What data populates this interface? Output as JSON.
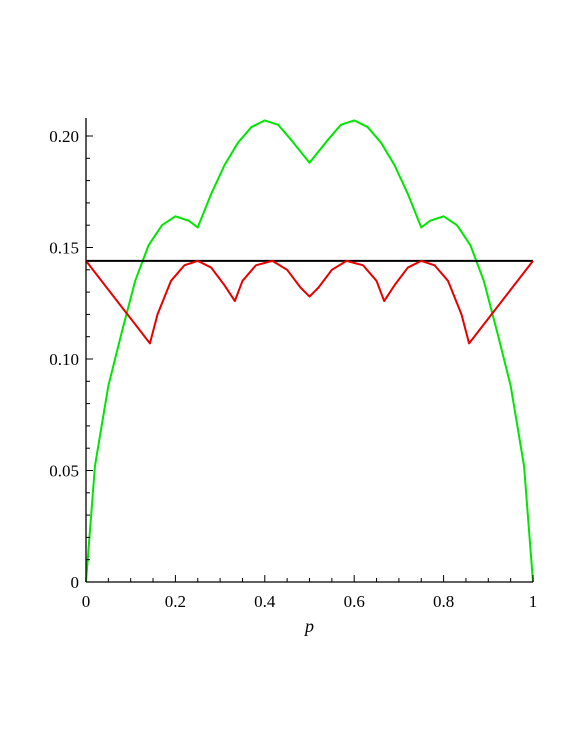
{
  "chart_data": {
    "type": "line",
    "title": "",
    "xlabel": "p",
    "ylabel": "",
    "xlim": [
      0,
      1
    ],
    "ylim": [
      0,
      0.21
    ],
    "xticks": [
      {
        "value": 0,
        "label": "0"
      },
      {
        "value": 0.2,
        "label": "0.2"
      },
      {
        "value": 0.4,
        "label": "0.4"
      },
      {
        "value": 0.6,
        "label": "0.6"
      },
      {
        "value": 0.8,
        "label": "0.8"
      },
      {
        "value": 1,
        "label": "1"
      }
    ],
    "yticks": [
      {
        "value": 0,
        "label": "0"
      },
      {
        "value": 0.05,
        "label": "0.05"
      },
      {
        "value": 0.1,
        "label": "0.10"
      },
      {
        "value": 0.15,
        "label": "0.15"
      },
      {
        "value": 0.2,
        "label": "0.20"
      }
    ],
    "grid": false,
    "legend": "none",
    "series": [
      {
        "color": "#00e600",
        "x": [
          0,
          0.02,
          0.05,
          0.08,
          0.11,
          0.14,
          0.17,
          0.2,
          0.23,
          0.25,
          0.28,
          0.31,
          0.34,
          0.37,
          0.4,
          0.43,
          0.46,
          0.48,
          0.5,
          0.52,
          0.54,
          0.57,
          0.6,
          0.63,
          0.66,
          0.69,
          0.72,
          0.75,
          0.77,
          0.8,
          0.83,
          0.86,
          0.89,
          0.92,
          0.95,
          0.98,
          1
        ],
        "y": [
          0,
          0.052,
          0.088,
          0.112,
          0.135,
          0.151,
          0.16,
          0.164,
          0.162,
          0.159,
          0.174,
          0.187,
          0.197,
          0.204,
          0.207,
          0.205,
          0.198,
          0.193,
          0.188,
          0.193,
          0.198,
          0.205,
          0.207,
          0.204,
          0.197,
          0.187,
          0.174,
          0.159,
          0.162,
          0.164,
          0.16,
          0.151,
          0.135,
          0.112,
          0.088,
          0.052,
          0
        ]
      },
      {
        "color": "#000000",
        "x": [
          0,
          1
        ],
        "y": [
          0.144,
          0.144
        ]
      },
      {
        "color": "#e60000",
        "x": [
          0,
          0.143,
          0.16,
          0.19,
          0.22,
          0.25,
          0.28,
          0.31,
          0.333,
          0.35,
          0.38,
          0.417,
          0.45,
          0.48,
          0.5,
          0.52,
          0.55,
          0.583,
          0.62,
          0.65,
          0.667,
          0.69,
          0.72,
          0.75,
          0.78,
          0.81,
          0.84,
          0.857,
          1
        ],
        "y": [
          0.144,
          0.107,
          0.12,
          0.135,
          0.142,
          0.144,
          0.141,
          0.133,
          0.126,
          0.135,
          0.142,
          0.144,
          0.14,
          0.132,
          0.128,
          0.132,
          0.14,
          0.144,
          0.142,
          0.135,
          0.126,
          0.133,
          0.141,
          0.144,
          0.142,
          0.135,
          0.12,
          0.107,
          0.144
        ]
      }
    ]
  }
}
